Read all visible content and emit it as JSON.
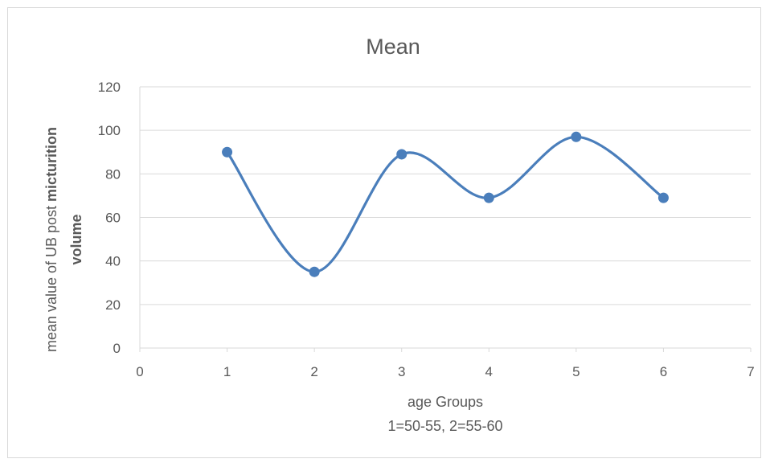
{
  "chart_data": {
    "type": "scatter",
    "title": "Mean",
    "xlabel": "age Groups",
    "xlabel_note": "1=50-55, 2=55-60",
    "ylabel_part1": "mean value of UB post ",
    "ylabel_part2": "micturition",
    "ylabel_line2": "volume",
    "xlim": [
      0,
      7
    ],
    "ylim": [
      0,
      120
    ],
    "x_ticks": [
      0,
      1,
      2,
      3,
      4,
      5,
      6,
      7
    ],
    "y_ticks": [
      0,
      20,
      40,
      60,
      80,
      100,
      120
    ],
    "grid": true,
    "smooth_line": true,
    "series": [
      {
        "color": "#4a7ebb",
        "points": [
          {
            "x": 1,
            "y": 90
          },
          {
            "x": 2,
            "y": 35
          },
          {
            "x": 3,
            "y": 89
          },
          {
            "x": 4,
            "y": 69
          },
          {
            "x": 5,
            "y": 97
          },
          {
            "x": 6,
            "y": 69
          }
        ]
      }
    ]
  }
}
